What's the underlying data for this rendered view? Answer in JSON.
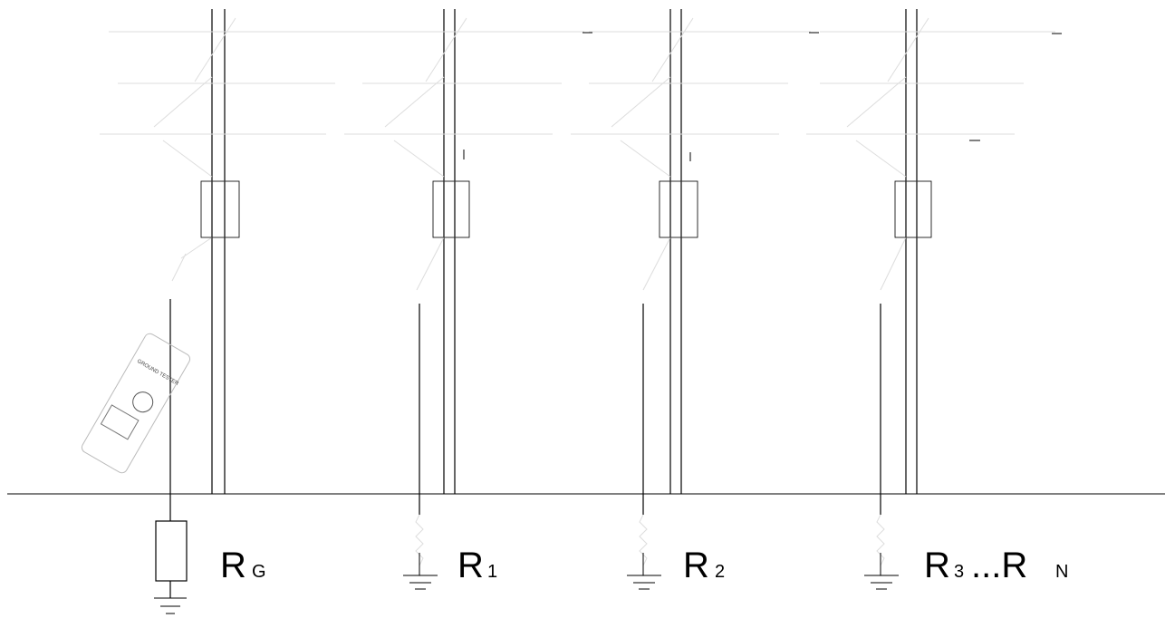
{
  "diagram": {
    "meter": {
      "text": "GROUND TESTER"
    },
    "poles": [
      {
        "label_main": "R",
        "label_sub": "G"
      },
      {
        "label_main": "R",
        "label_sub": "1"
      },
      {
        "label_main": "R",
        "label_sub": "2"
      },
      {
        "label_main": "R",
        "label_sub": "3",
        "label_suffix": "...R",
        "label_suffix_sub": "N"
      }
    ],
    "colors": {
      "line": "#000000",
      "faint": "#dddddd",
      "background": "#ffffff"
    }
  }
}
